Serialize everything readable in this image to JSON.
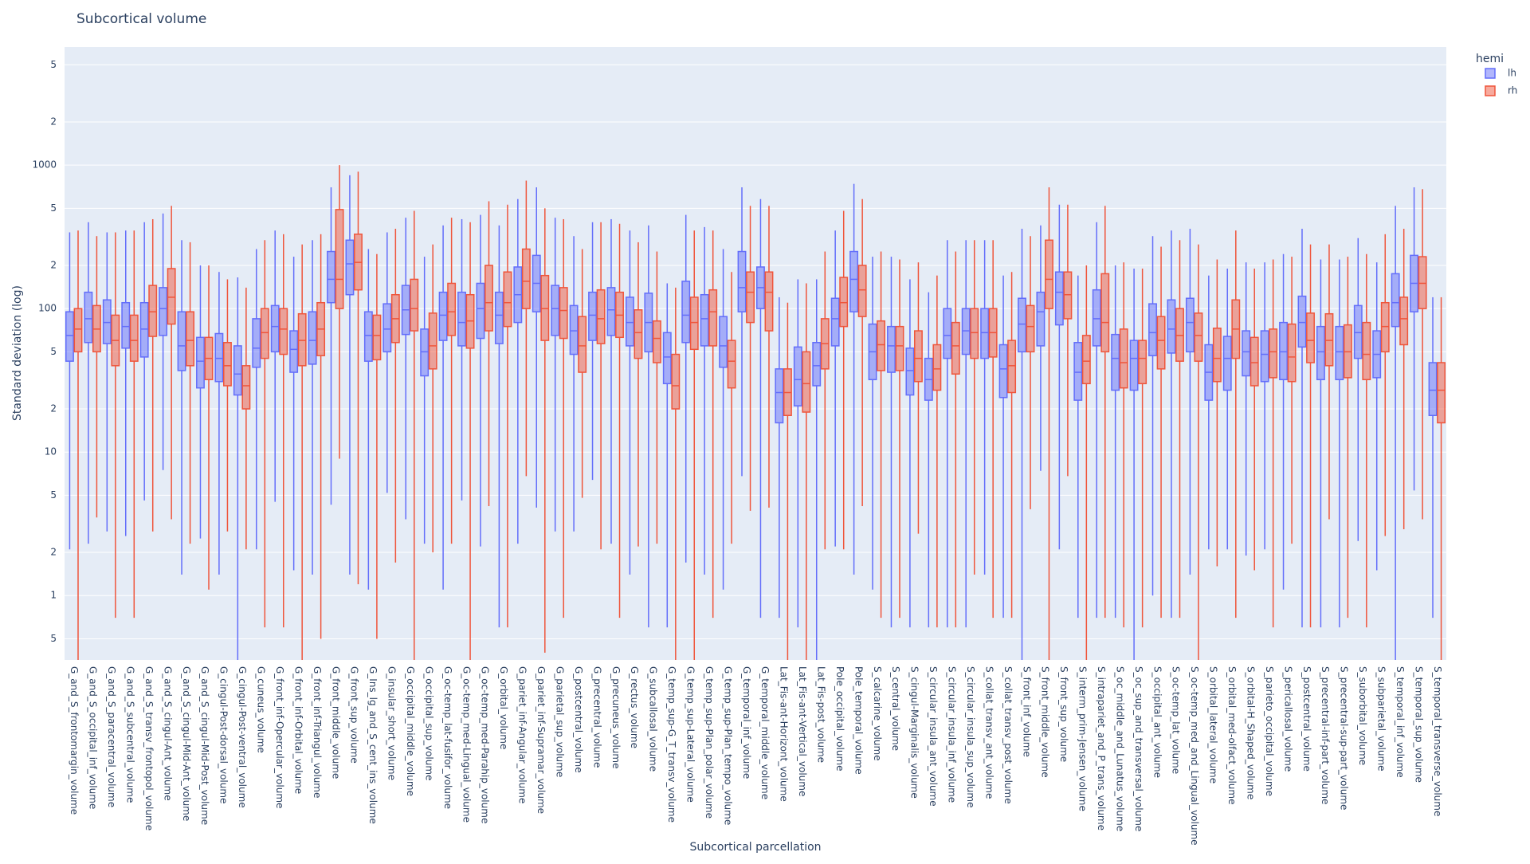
{
  "chart_data": {
    "type": "box",
    "title": "Subcortical volume",
    "x_label": "Subcortical parcellation",
    "y_label": "Standard deviation (log)",
    "log_y": true,
    "grid": true,
    "legend_title": "hemi",
    "legend_position": "top-right",
    "ylim": [
      0.356,
      6650
    ],
    "yticks": [
      {
        "value": 0.5,
        "label": "5"
      },
      1,
      2,
      5,
      10,
      {
        "value": 20,
        "label": "2"
      },
      {
        "value": 50,
        "label": "5"
      },
      100,
      {
        "value": 200,
        "label": "2"
      },
      {
        "value": 500,
        "label": "5"
      },
      1000,
      {
        "value": 2000,
        "label": "2"
      },
      {
        "value": 5000,
        "label": "5"
      }
    ],
    "categories": [
      "G_and_S_frontomargin_volume",
      "G_and_S_occipital_inf_volume",
      "G_and_S_paracentral_volume",
      "G_and_S_subcentral_volume",
      "G_and_S_transv_frontopol_volume",
      "G_and_S_cingul-Ant_volume",
      "G_and_S_cingul-Mid-Ant_volume",
      "G_and_S_cingul-Mid-Post_volume",
      "G_cingul-Post-dorsal_volume",
      "G_cingul-Post-ventral_volume",
      "G_cuneus_volume",
      "G_front_inf-Opercular_volume",
      "G_front_inf-Orbital_volume",
      "G_front_inf-Triangul_volume",
      "G_front_middle_volume",
      "G_front_sup_volume",
      "G_Ins_lg_and_S_cent_ins_volume",
      "G_insular_short_volume",
      "G_occipital_middle_volume",
      "G_occipital_sup_volume",
      "G_oc-temp_lat-fusifor_volume",
      "G_oc-temp_med-Lingual_volume",
      "G_oc-temp_med-Parahip_volume",
      "G_orbital_volume",
      "G_pariet_inf-Angular_volume",
      "G_pariet_inf-Supramar_volume",
      "G_parietal_sup_volume",
      "G_postcentral_volume",
      "G_precentral_volume",
      "G_precuneus_volume",
      "G_rectus_volume",
      "G_subcallosal_volume",
      "G_temp_sup-G_T_transv_volume",
      "G_temp_sup-Lateral_volume",
      "G_temp_sup-Plan_polar_volume",
      "G_temp_sup-Plan_tempo_volume",
      "G_temporal_inf_volume",
      "G_temporal_middle_volume",
      "Lat_Fis-ant-Horizont_volume",
      "Lat_Fis-ant-Vertical_volume",
      "Lat_Fis-post_volume",
      "Pole_occipital_volume",
      "Pole_temporal_volume",
      "S_calcarine_volume",
      "S_central_volume",
      "S_cingul-Marginalis_volume",
      "S_circular_insula_ant_volume",
      "S_circular_insula_inf_volume",
      "S_circular_insula_sup_volume",
      "S_collat_transv_ant_volume",
      "S_collat_transv_post_volume",
      "S_front_inf_volume",
      "S_front_middle_volume",
      "S_front_sup_volume",
      "S_interm_prim-Jensen_volume",
      "S_intrapariet_and_P_trans_volume",
      "S_oc_middle_and_Lunatus_volume",
      "S_oc_sup_and_transversal_volume",
      "S_occipital_ant_volume",
      "S_oc-temp_lat_volume",
      "S_oc-temp_med_and_Lingual_volume",
      "S_orbital_lateral_volume",
      "S_orbital_med-olfact_volume",
      "S_orbital-H_Shaped_volume",
      "S_parieto_occipital_volume",
      "S_pericallosal_volume",
      "S_postcentral_volume",
      "S_precentral-inf-part_volume",
      "S_precentral-sup-part_volume",
      "S_suborbital_volume",
      "S_subparietal_volume",
      "S_temporal_inf_volume",
      "S_temporal_sup_volume",
      "S_temporal_transverse_volume"
    ],
    "series": [
      {
        "name": "lh",
        "color": "#636efa",
        "lower": [
          2.1,
          2.3,
          2.8,
          2.6,
          4.6,
          7.5,
          1.4,
          2.5,
          1.4,
          0.3,
          2.1,
          4.5,
          1.5,
          1.4,
          4.3,
          1.4,
          1.1,
          5.2,
          3.4,
          2.3,
          1.1,
          4.6,
          2.2,
          0.6,
          2.3,
          4.1,
          2.8,
          2.8,
          6.4,
          2.3,
          1.4,
          0.6,
          0.6,
          1.7,
          1.4,
          1.1,
          6.8,
          0.7,
          0.7,
          0.6,
          0.3,
          2.2,
          1.4,
          1.1,
          0.6,
          0.6,
          0.6,
          0.6,
          0.6,
          1.4,
          0.7,
          0.3,
          7.4,
          2.1,
          0.7,
          0.7,
          0.7,
          0.3,
          1.0,
          0.7,
          1.4,
          2.1,
          2.1,
          1.9,
          2.1,
          1.1,
          0.6,
          0.6,
          0.6,
          2.4,
          1.5,
          0.3,
          5.4,
          0.7
        ],
        "q1": [
          43,
          58,
          57,
          53,
          46,
          65,
          37,
          28,
          31,
          25,
          39,
          50,
          36,
          41,
          110,
          125,
          43,
          50,
          66,
          34,
          60,
          55,
          62,
          57,
          80,
          95,
          65,
          48,
          60,
          65,
          55,
          50,
          30,
          58,
          55,
          39,
          95,
          100,
          16,
          21,
          29,
          55,
          95,
          32,
          36,
          25,
          23,
          45,
          48,
          45,
          24,
          50,
          55,
          77,
          23,
          55,
          27,
          27,
          47,
          49,
          50,
          23,
          27,
          34,
          31,
          32,
          54,
          32,
          32,
          45,
          33,
          75,
          95,
          18
        ],
        "median": [
          65,
          85,
          80,
          75,
          72,
          100,
          55,
          43,
          45,
          35,
          53,
          75,
          52,
          60,
          160,
          205,
          65,
          72,
          98,
          50,
          90,
          80,
          100,
          90,
          125,
          150,
          100,
          70,
          90,
          98,
          80,
          80,
          46,
          90,
          85,
          55,
          140,
          140,
          26,
          32,
          40,
          85,
          160,
          50,
          55,
          37,
          32,
          65,
          70,
          68,
          38,
          78,
          95,
          130,
          36,
          85,
          45,
          45,
          68,
          72,
          80,
          36,
          45,
          50,
          48,
          50,
          80,
          50,
          50,
          68,
          48,
          110,
          150,
          27
        ],
        "q3": [
          95,
          130,
          115,
          110,
          110,
          140,
          95,
          63,
          67,
          55,
          85,
          105,
          70,
          95,
          250,
          300,
          95,
          108,
          145,
          72,
          130,
          130,
          150,
          130,
          195,
          235,
          145,
          105,
          130,
          140,
          120,
          128,
          68,
          155,
          125,
          88,
          250,
          195,
          38,
          54,
          58,
          118,
          250,
          78,
          75,
          53,
          45,
          100,
          100,
          100,
          56,
          118,
          130,
          180,
          58,
          135,
          66,
          60,
          108,
          115,
          118,
          56,
          64,
          70,
          70,
          80,
          122,
          75,
          75,
          105,
          70,
          175,
          235,
          42
        ],
        "upper": [
          340,
          400,
          340,
          350,
          400,
          460,
          300,
          200,
          180,
          165,
          260,
          350,
          230,
          300,
          700,
          850,
          260,
          340,
          430,
          230,
          380,
          420,
          450,
          380,
          580,
          700,
          430,
          320,
          400,
          420,
          350,
          380,
          150,
          450,
          370,
          260,
          700,
          580,
          120,
          160,
          160,
          350,
          740,
          230,
          230,
          160,
          130,
          300,
          300,
          300,
          170,
          360,
          380,
          530,
          170,
          400,
          200,
          190,
          320,
          350,
          360,
          170,
          190,
          210,
          210,
          240,
          360,
          220,
          220,
          310,
          210,
          520,
          700,
          120
        ]
      },
      {
        "name": "rh",
        "color": "#ef553b",
        "lower": [
          0.3,
          3.5,
          0.7,
          0.7,
          2.8,
          3.4,
          2.3,
          1.1,
          2.8,
          2.1,
          0.6,
          0.6,
          0.3,
          0.5,
          9,
          1.2,
          0.5,
          1.7,
          0.3,
          2.0,
          2.3,
          0.3,
          4.2,
          0.6,
          6.8,
          0.4,
          0.7,
          4.8,
          2.1,
          0.7,
          2.2,
          2.3,
          0.3,
          0.3,
          0.7,
          2.3,
          3.9,
          4.1,
          0.3,
          0.3,
          2.1,
          2.1,
          4.2,
          0.7,
          0.7,
          2.7,
          0.6,
          0.6,
          1.4,
          0.7,
          0.7,
          4.0,
          0.3,
          6.8,
          0.3,
          0.7,
          0.6,
          0.6,
          0.7,
          0.7,
          0.3,
          1.6,
          0.7,
          1.5,
          0.6,
          2.3,
          0.6,
          3.4,
          0.7,
          0.6,
          2.6,
          2.9,
          3.4,
          0.3
        ],
        "q1": [
          50,
          50,
          40,
          43,
          64,
          78,
          40,
          32,
          29,
          20,
          45,
          48,
          40,
          47,
          100,
          135,
          44,
          58,
          70,
          38,
          65,
          53,
          70,
          75,
          100,
          60,
          62,
          36,
          57,
          63,
          45,
          42,
          20,
          52,
          55,
          28,
          80,
          70,
          18,
          19,
          38,
          75,
          88,
          37,
          37,
          31,
          27,
          35,
          45,
          46,
          26,
          50,
          100,
          85,
          30,
          50,
          28,
          30,
          38,
          43,
          43,
          31,
          45,
          29,
          33,
          31,
          42,
          40,
          33,
          32,
          50,
          56,
          100,
          16
        ],
        "median": [
          72,
          72,
          60,
          60,
          95,
          120,
          60,
          45,
          40,
          29,
          68,
          72,
          60,
          72,
          160,
          210,
          65,
          85,
          100,
          55,
          95,
          82,
          110,
          110,
          155,
          100,
          97,
          55,
          85,
          90,
          68,
          62,
          29,
          80,
          95,
          43,
          130,
          130,
          26,
          30,
          57,
          110,
          135,
          56,
          55,
          45,
          38,
          55,
          68,
          68,
          40,
          75,
          160,
          125,
          43,
          80,
          42,
          45,
          60,
          65,
          65,
          45,
          72,
          42,
          50,
          46,
          60,
          60,
          50,
          48,
          75,
          85,
          150,
          27
        ],
        "q3": [
          100,
          105,
          90,
          90,
          145,
          190,
          95,
          63,
          58,
          40,
          100,
          100,
          92,
          110,
          490,
          330,
          90,
          125,
          160,
          93,
          150,
          125,
          200,
          180,
          260,
          170,
          140,
          88,
          135,
          130,
          98,
          82,
          48,
          120,
          135,
          60,
          180,
          180,
          38,
          50,
          85,
          165,
          200,
          82,
          75,
          70,
          56,
          80,
          100,
          100,
          60,
          105,
          300,
          180,
          65,
          175,
          72,
          60,
          88,
          100,
          93,
          73,
          115,
          63,
          72,
          78,
          93,
          92,
          77,
          80,
          110,
          120,
          230,
          42
        ],
        "upper": [
          350,
          320,
          340,
          350,
          420,
          520,
          290,
          200,
          160,
          140,
          300,
          330,
          280,
          330,
          1000,
          900,
          240,
          360,
          480,
          280,
          430,
          400,
          560,
          530,
          780,
          500,
          420,
          260,
          400,
          390,
          290,
          250,
          140,
          350,
          350,
          180,
          520,
          520,
          110,
          150,
          250,
          480,
          580,
          250,
          220,
          210,
          170,
          250,
          300,
          300,
          180,
          320,
          700,
          530,
          200,
          520,
          210,
          190,
          270,
          300,
          280,
          220,
          350,
          190,
          220,
          230,
          280,
          280,
          230,
          240,
          330,
          360,
          680,
          120
        ]
      }
    ]
  }
}
